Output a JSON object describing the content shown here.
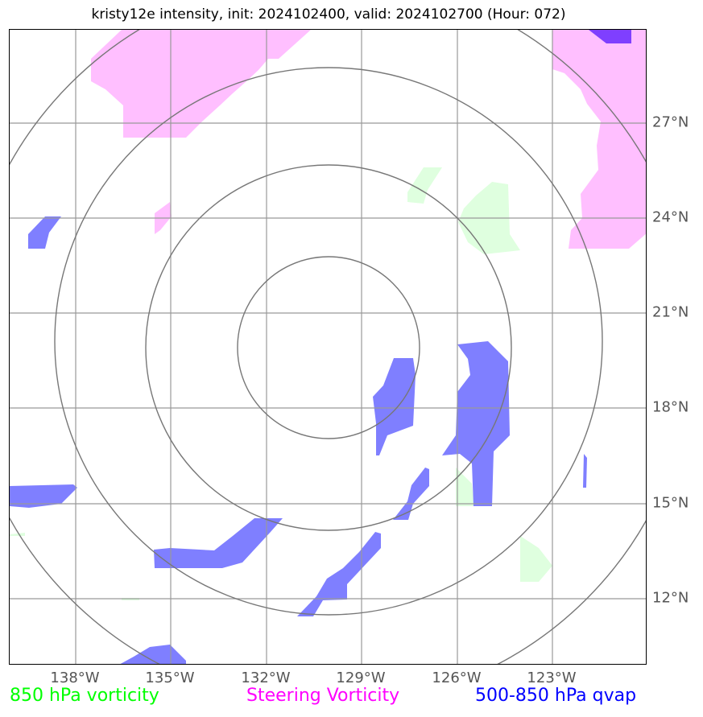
{
  "title": "kristy12e intensity, init: 2024102400, valid: 2024102700 (Hour: 072)",
  "latitude_labels": [
    "27°N",
    "24°N",
    "21°N",
    "18°N",
    "15°N",
    "12°N"
  ],
  "longitude_labels": [
    "138°W",
    "135°W",
    "132°W",
    "129°W",
    "126°W",
    "123°W"
  ],
  "legend": {
    "vorticity_850": {
      "label": "850 hPa vorticity",
      "color": "#00ff00"
    },
    "steering_vorticity": {
      "label": "Steering Vorticity",
      "color": "#ff00ff"
    },
    "qvap_500_850": {
      "label": "500-850 hPa qvap",
      "color": "#0000ff"
    }
  },
  "colors": {
    "steering_fill": "#ffbfff",
    "steering_strong_fill": "#7f3fff",
    "vorticity_fill": "#dfffdf",
    "qvap_fill": "#7f7fff",
    "grid": "#999999",
    "range_rings": "#777777"
  }
}
